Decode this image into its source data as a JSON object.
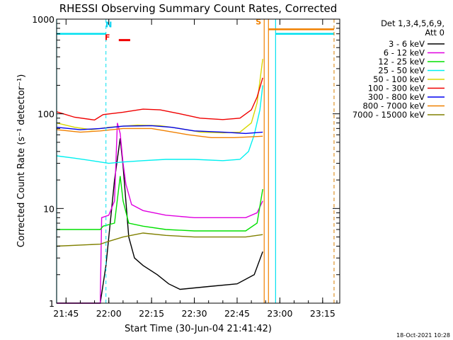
{
  "chart_data": {
    "type": "line",
    "title": "RHESSI Observing Summary Count Rates, Corrected",
    "xlabel": "Start Time (30-Jun-04 21:41:42)",
    "ylabel": "Corrected Count Rate (s⁻¹ detector⁻¹)",
    "y_scale": "log",
    "ylim": [
      1,
      1000
    ],
    "xlim": [
      "21:41:42",
      "23:21:00"
    ],
    "x_ticks": [
      "21:45",
      "22:00",
      "22:15",
      "22:30",
      "22:45",
      "23:00",
      "23:15"
    ],
    "y_ticks": [
      "1",
      "10",
      "100",
      "1000"
    ],
    "det_label": "Det 1,3,4,5,6,9,",
    "att_label": "Att 0",
    "footer_date": "18-Oct-2021 10:28",
    "legend_position": "right",
    "series": [
      {
        "name": "3 - 6 keV",
        "color": "#000000",
        "points": [
          [
            "21:41:42",
            1
          ],
          [
            "21:57",
            1
          ],
          [
            "21:59",
            2.5
          ],
          [
            "22:02",
            20
          ],
          [
            "22:04",
            55
          ],
          [
            "22:05",
            28
          ],
          [
            "22:07",
            5
          ],
          [
            "22:09",
            3
          ],
          [
            "22:12",
            2.5
          ],
          [
            "22:17",
            2
          ],
          [
            "22:21",
            1.6
          ],
          [
            "22:25",
            1.4
          ],
          [
            "22:35",
            1.5
          ],
          [
            "22:45",
            1.6
          ],
          [
            "22:51",
            2
          ],
          [
            "22:54",
            3.5
          ]
        ]
      },
      {
        "name": "6 - 12 keV",
        "color": "#e000e0",
        "points": [
          [
            "21:41:42",
            1
          ],
          [
            "21:57",
            1
          ],
          [
            "21:57.5",
            8
          ],
          [
            "22:00",
            8.5
          ],
          [
            "22:02",
            12
          ],
          [
            "22:03",
            80
          ],
          [
            "22:04",
            62
          ],
          [
            "22:05",
            30
          ],
          [
            "22:06",
            18
          ],
          [
            "22:08",
            11
          ],
          [
            "22:12",
            9.5
          ],
          [
            "22:20",
            8.5
          ],
          [
            "22:30",
            8
          ],
          [
            "22:40",
            8
          ],
          [
            "22:48",
            8
          ],
          [
            "22:52",
            9
          ],
          [
            "22:54",
            12
          ]
        ]
      },
      {
        "name": "12 - 25 keV",
        "color": "#00e000",
        "points": [
          [
            "21:41:42",
            6
          ],
          [
            "21:57",
            6
          ],
          [
            "21:58",
            6.5
          ],
          [
            "22:02",
            7
          ],
          [
            "22:04",
            22
          ],
          [
            "22:05",
            12
          ],
          [
            "22:07",
            7
          ],
          [
            "22:12",
            6.5
          ],
          [
            "22:20",
            6
          ],
          [
            "22:30",
            5.8
          ],
          [
            "22:40",
            5.8
          ],
          [
            "22:48",
            5.8
          ],
          [
            "22:52",
            7
          ],
          [
            "22:54",
            16
          ]
        ]
      },
      {
        "name": "25 - 50 keV",
        "color": "#00f0f0",
        "points": [
          [
            "21:41:42",
            36
          ],
          [
            "21:48",
            34
          ],
          [
            "21:54",
            32
          ],
          [
            "22:00",
            30
          ],
          [
            "22:05",
            31
          ],
          [
            "22:12",
            32
          ],
          [
            "22:20",
            33
          ],
          [
            "22:30",
            33
          ],
          [
            "22:40",
            32
          ],
          [
            "22:46",
            33
          ],
          [
            "22:49",
            40
          ],
          [
            "22:51",
            60
          ],
          [
            "22:53",
            110
          ],
          [
            "22:54",
            200
          ]
        ]
      },
      {
        "name": "50 - 100 keV",
        "color": "#d8d800",
        "points": [
          [
            "21:41:42",
            80
          ],
          [
            "21:48",
            72
          ],
          [
            "21:54",
            68
          ],
          [
            "22:00",
            72
          ],
          [
            "22:10",
            76
          ],
          [
            "22:18",
            75
          ],
          [
            "22:25",
            70
          ],
          [
            "22:32",
            64
          ],
          [
            "22:40",
            63
          ],
          [
            "22:46",
            64
          ],
          [
            "22:50",
            80
          ],
          [
            "22:52",
            130
          ],
          [
            "22:54",
            380
          ]
        ]
      },
      {
        "name": "100 - 300 keV",
        "color": "#f00000",
        "points": [
          [
            "21:41:42",
            105
          ],
          [
            "21:48",
            92
          ],
          [
            "21:55",
            86
          ],
          [
            "21:58",
            98
          ],
          [
            "22:05",
            104
          ],
          [
            "22:12",
            112
          ],
          [
            "22:18",
            110
          ],
          [
            "22:25",
            100
          ],
          [
            "22:32",
            90
          ],
          [
            "22:40",
            87
          ],
          [
            "22:46",
            90
          ],
          [
            "22:50",
            110
          ],
          [
            "22:52",
            150
          ],
          [
            "22:54",
            240
          ]
        ]
      },
      {
        "name": "300 - 800 keV",
        "color": "#0000f0",
        "points": [
          [
            "21:41:42",
            72
          ],
          [
            "21:50",
            68
          ],
          [
            "21:57",
            70
          ],
          [
            "22:05",
            74
          ],
          [
            "22:15",
            75
          ],
          [
            "22:22",
            72
          ],
          [
            "22:30",
            66
          ],
          [
            "22:40",
            64
          ],
          [
            "22:48",
            62
          ],
          [
            "22:54",
            64
          ]
        ]
      },
      {
        "name": "800 - 7000 keV",
        "color": "#f08000",
        "points": [
          [
            "21:41:42",
            68
          ],
          [
            "21:50",
            64
          ],
          [
            "21:57",
            66
          ],
          [
            "22:05",
            70
          ],
          [
            "22:15",
            70
          ],
          [
            "22:20",
            66
          ],
          [
            "22:28",
            60
          ],
          [
            "22:36",
            56
          ],
          [
            "22:44",
            56
          ],
          [
            "22:54",
            58
          ]
        ]
      },
      {
        "name": "7000 - 15000 keV",
        "color": "#808000",
        "points": [
          [
            "21:41:42",
            4
          ],
          [
            "21:57",
            4.2
          ],
          [
            "22:00",
            4.5
          ],
          [
            "22:05",
            5
          ],
          [
            "22:12",
            5.5
          ],
          [
            "22:20",
            5.2
          ],
          [
            "22:30",
            5
          ],
          [
            "22:40",
            5
          ],
          [
            "22:48",
            5
          ],
          [
            "22:54",
            5.3
          ]
        ]
      }
    ],
    "annotations": [
      {
        "label": "N",
        "color": "#00d0f0",
        "x": "22:00",
        "y": 820
      },
      {
        "label": "F",
        "color": "#f00000",
        "x": "21:59.5",
        "y": 600
      },
      {
        "label": "S",
        "color": "#f08000",
        "x": "22:52.5",
        "y": 880
      }
    ],
    "flags": [
      {
        "name": "night",
        "color": "#00e0f0",
        "level": 700,
        "solid_segments": [
          [
            "21:41:42",
            "21:59"
          ],
          [
            "22:58.5",
            "23:19"
          ]
        ],
        "dashed_lines": [
          "21:59",
          "23:19"
        ],
        "solid_lines": [
          "21:41:42",
          "22:58.5"
        ]
      },
      {
        "name": "flare",
        "color": "#f00000",
        "level": 600,
        "solid_segments": [
          [
            "22:03.5",
            "22:07.5"
          ]
        ]
      },
      {
        "name": "saa",
        "color": "#f08000",
        "level": 780,
        "solid_segments": [
          [
            "22:56",
            "23:19"
          ]
        ],
        "dashed_lines": [
          "23:19"
        ],
        "solid_lines": [
          "22:54.5",
          "22:56"
        ]
      }
    ]
  }
}
